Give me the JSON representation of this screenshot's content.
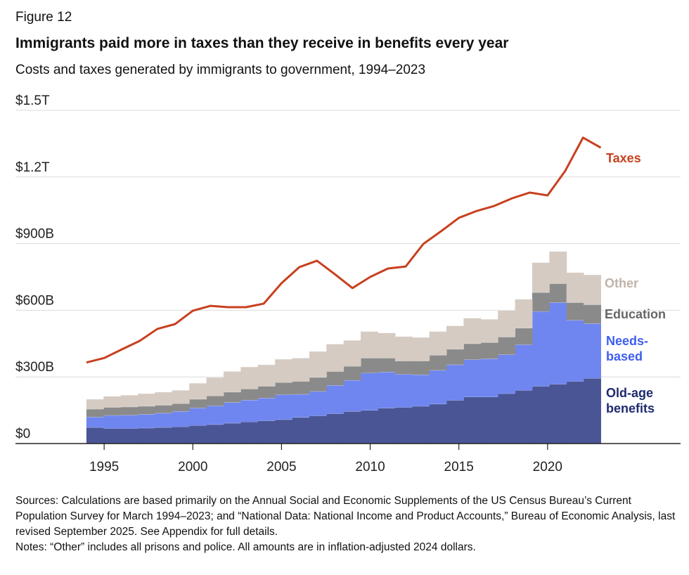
{
  "figure": "Figure 12",
  "chart_data": {
    "type": "stacked-step-area",
    "title": "Immigrants paid more in taxes than they receive in benefits every year",
    "subtitle": "Costs and taxes generated by immigrants to government, 1994–2023",
    "x": [
      1994,
      1995,
      1996,
      1997,
      1998,
      1999,
      2000,
      2001,
      2002,
      2003,
      2004,
      2005,
      2006,
      2007,
      2008,
      2009,
      2010,
      2011,
      2012,
      2013,
      2014,
      2015,
      2016,
      2017,
      2018,
      2019,
      2020,
      2021,
      2022,
      2023
    ],
    "series": [
      {
        "name": "Old-age benefits",
        "color": "#4a5596",
        "label_color": "#1e2a6e",
        "values": [
          73,
          68,
          68,
          70,
          73,
          76,
          82,
          86,
          92,
          98,
          103,
          108,
          118,
          125,
          135,
          145,
          150,
          160,
          163,
          168,
          178,
          195,
          210,
          210,
          225,
          240,
          258,
          268,
          280,
          294
        ]
      },
      {
        "name": "Needs-based",
        "color": "#6f86f0",
        "label_color": "#3d5ef0",
        "values": [
          47,
          59,
          60,
          62,
          64,
          69,
          78,
          84,
          93,
          98,
          102,
          112,
          104,
          110,
          127,
          140,
          168,
          162,
          149,
          142,
          152,
          160,
          168,
          172,
          175,
          205,
          337,
          367,
          275,
          246
        ]
      },
      {
        "name": "Education",
        "color": "#8a8a8a",
        "label_color": "#666666",
        "values": [
          35,
          36,
          37,
          36,
          36,
          35,
          40,
          45,
          47,
          50,
          53,
          55,
          58,
          63,
          63,
          63,
          67,
          63,
          60,
          62,
          68,
          70,
          72,
          73,
          80,
          75,
          85,
          85,
          80,
          85
        ]
      },
      {
        "name": "Other",
        "color": "#d5cbc2",
        "label_color": "#bfb3a8",
        "values": [
          45,
          50,
          53,
          57,
          59,
          60,
          72,
          83,
          93,
          99,
          97,
          105,
          105,
          117,
          123,
          117,
          120,
          113,
          110,
          106,
          107,
          105,
          115,
          105,
          120,
          130,
          135,
          145,
          135,
          135
        ]
      },
      {
        "name": "Taxes",
        "type": "line",
        "color": "#c8401f",
        "label_color": "#c8401f",
        "values": [
          365,
          385,
          424,
          462,
          516,
          538,
          598,
          620,
          614,
          614,
          630,
          722,
          794,
          823,
          763,
          700,
          750,
          788,
          797,
          899,
          956,
          1016,
          1047,
          1070,
          1104,
          1130,
          1117,
          1228,
          1377,
          1332
        ]
      }
    ],
    "xlim": [
      1990,
      2027.5
    ],
    "xticks": [
      1995,
      2000,
      2005,
      2010,
      2015,
      2020
    ],
    "ylim": [
      0,
      1500
    ],
    "yticks": [
      {
        "value": 0,
        "label": "$0"
      },
      {
        "value": 300,
        "label": "$300B"
      },
      {
        "value": 600,
        "label": "$600B"
      },
      {
        "value": 900,
        "label": "$900B"
      },
      {
        "value": 1200,
        "label": "$1.2T"
      },
      {
        "value": 1500,
        "label": "$1.5T"
      }
    ],
    "grid": true
  },
  "sources": "Sources: Calculations are based primarily on the Annual Social and Economic Supplements of the US Census Bureau’s Current Population Survey for March 1994–2023; and “National Data: National Income and Product Accounts,” Bureau of Economic Analysis, last revised September 2025. See Appendix for full details.",
  "notes": "Notes: “Other” includes all prisons and police. All amounts are in inflation-adjusted 2024 dollars."
}
